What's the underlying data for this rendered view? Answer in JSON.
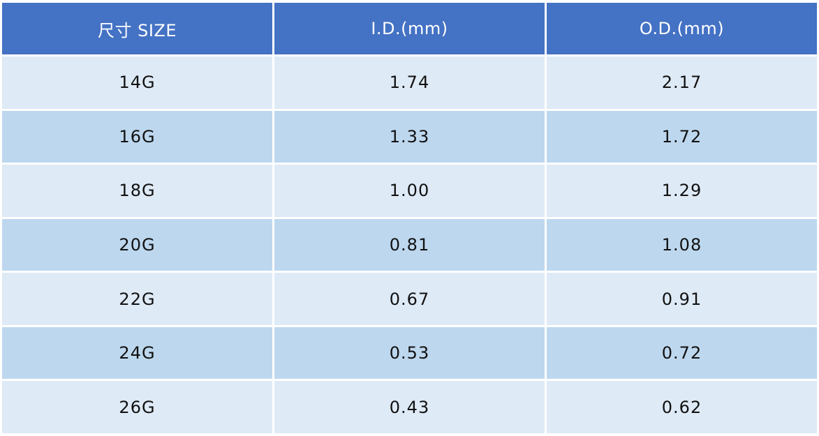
{
  "colors": {
    "header_bg": "#4472c4",
    "row_light": "#deeaf6",
    "row_dark": "#bdd7ee"
  },
  "table": {
    "headers": [
      "尺寸 SIZE",
      "I.D.(mm)",
      "O.D.(mm)"
    ],
    "rows": [
      [
        "14G",
        "1.74",
        "2.17"
      ],
      [
        "16G",
        "1.33",
        "1.72"
      ],
      [
        "18G",
        "1.00",
        "1.29"
      ],
      [
        "20G",
        "0.81",
        "1.08"
      ],
      [
        "22G",
        "0.67",
        "0.91"
      ],
      [
        "24G",
        "0.53",
        "0.72"
      ],
      [
        "26G",
        "0.43",
        "0.62"
      ]
    ]
  }
}
